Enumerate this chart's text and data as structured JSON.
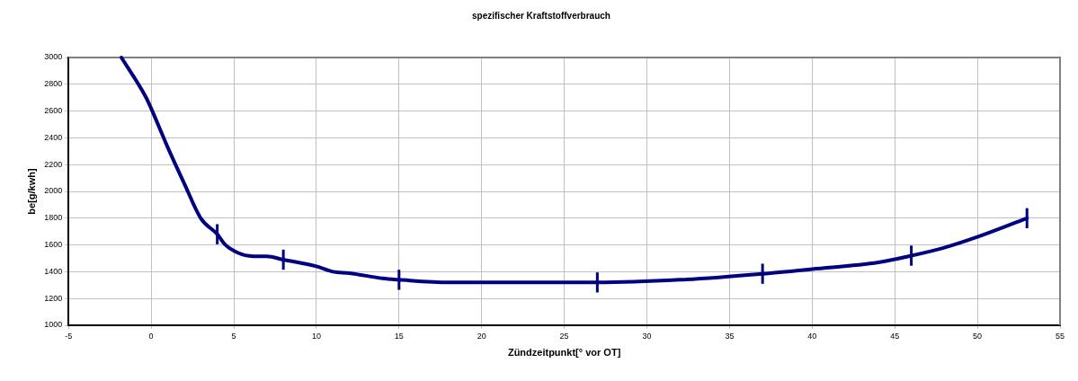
{
  "chart_data": {
    "type": "line",
    "title": "spezifischer Kraftstoffverbrauch",
    "xlabel": "Zündzeitpunkt[° vor OT]",
    "ylabel": "be[g/kwh]",
    "x": [
      -1.8,
      -0.3,
      0,
      1,
      2,
      3,
      4,
      4.5,
      5.5,
      6.5,
      7,
      8,
      10,
      11,
      12,
      14,
      15,
      18,
      27,
      32,
      37,
      40,
      44,
      46,
      48,
      50,
      53
    ],
    "series": [
      {
        "color": "#000080",
        "values": [
          3000,
          2700,
          2620,
          2330,
          2060,
          1800,
          1680,
          1600,
          1530,
          1515,
          1515,
          1490,
          1440,
          1400,
          1390,
          1350,
          1340,
          1320,
          1320,
          1340,
          1385,
          1420,
          1470,
          1520,
          1580,
          1660,
          1800
        ],
        "errors": [
          null,
          null,
          null,
          null,
          null,
          null,
          75,
          null,
          null,
          null,
          null,
          75,
          null,
          null,
          null,
          null,
          75,
          null,
          75,
          null,
          75,
          null,
          null,
          75,
          null,
          null,
          75
        ]
      }
    ],
    "xlim": [
      -5,
      55
    ],
    "xticks": [
      -5,
      0,
      5,
      10,
      15,
      20,
      25,
      30,
      35,
      40,
      45,
      50,
      55
    ],
    "ylim": [
      1000,
      3000
    ],
    "yticks": [
      1000,
      1200,
      1400,
      1600,
      1800,
      2000,
      2200,
      2400,
      2600,
      2800,
      3000
    ],
    "grid": true,
    "legend": false,
    "marker": "none",
    "line_style": "solid"
  }
}
